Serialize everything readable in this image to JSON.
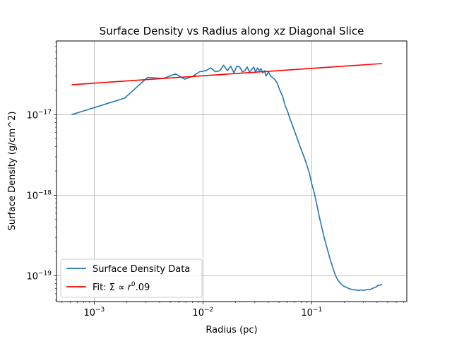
{
  "chart_data": {
    "type": "line",
    "title": "Surface Density vs Radius along xz Diagonal Slice",
    "xlabel": "Radius (pc)",
    "ylabel": "Surface Density (g/cm^2)",
    "xscale": "log",
    "yscale": "log",
    "xlim": [
      0.00045,
      0.75
    ],
    "ylim": [
      4.8e-20,
      8.2e-17
    ],
    "grid": true,
    "legend_position": "lower-left",
    "x_tick_labels": [
      {
        "value": 0.001,
        "base": "10",
        "exp": "−3"
      },
      {
        "value": 0.01,
        "base": "10",
        "exp": "−2"
      },
      {
        "value": 0.1,
        "base": "10",
        "exp": "−1"
      }
    ],
    "y_tick_labels": [
      {
        "value": 1e-19,
        "base": "10",
        "exp": "−19"
      },
      {
        "value": 1e-18,
        "base": "10",
        "exp": "−18"
      },
      {
        "value": 1e-17,
        "base": "10",
        "exp": "−17"
      }
    ],
    "series": [
      {
        "name": "Surface Density Data",
        "color": "#1f77b4",
        "x": [
          0.00062,
          0.0019,
          0.0031,
          0.0043,
          0.0056,
          0.0068,
          0.0081,
          0.0093,
          0.0106,
          0.0118,
          0.013,
          0.0143,
          0.0155,
          0.0168,
          0.018,
          0.0193,
          0.0205,
          0.0218,
          0.023,
          0.0243,
          0.0255,
          0.0268,
          0.028,
          0.0293,
          0.0305,
          0.0318,
          0.033,
          0.0343,
          0.0355,
          0.0368,
          0.038,
          0.04,
          0.042,
          0.045,
          0.048,
          0.051,
          0.054,
          0.057,
          0.06,
          0.064,
          0.068,
          0.072,
          0.076,
          0.08,
          0.085,
          0.09,
          0.095,
          0.1,
          0.106,
          0.112,
          0.118,
          0.125,
          0.132,
          0.14,
          0.148,
          0.157,
          0.166,
          0.176,
          0.187,
          0.198,
          0.21,
          0.223,
          0.237,
          0.252,
          0.268,
          0.285,
          0.303,
          0.322,
          0.342,
          0.363,
          0.385,
          0.408,
          0.432,
          0.445
        ],
        "y": [
          1e-17,
          1.6e-17,
          2.9e-17,
          2.8e-17,
          3.2e-17,
          2.75e-17,
          3e-17,
          3.4e-17,
          3.5e-17,
          3.8e-17,
          3.4e-17,
          3.5e-17,
          4.1e-17,
          3.5e-17,
          4e-17,
          3.3e-17,
          4e-17,
          3.9e-17,
          3.4e-17,
          3.5e-17,
          3.9e-17,
          3.4e-17,
          3.6e-17,
          3.9e-17,
          3.4e-17,
          3.8e-17,
          3.5e-17,
          3.7e-17,
          3.3e-17,
          3.5e-17,
          3e-17,
          3.4e-17,
          3e-17,
          2.8e-17,
          2.5e-17,
          2e-17,
          1.7e-17,
          1.3e-17,
          1.1e-17,
          8.5e-18,
          6.8e-18,
          5.5e-18,
          4.5e-18,
          3.7e-18,
          3e-18,
          2.4e-18,
          1.9e-18,
          1.4e-18,
          1.05e-18,
          7.5e-19,
          5.3e-19,
          3.8e-19,
          2.8e-19,
          2.1e-19,
          1.6e-19,
          1.25e-19,
          1e-19,
          8.7e-20,
          7.9e-20,
          7.4e-20,
          7.2e-20,
          6.9e-20,
          6.8e-20,
          6.7e-20,
          6.6e-20,
          6.7e-20,
          6.6e-20,
          6.8e-20,
          6.7e-20,
          7e-20,
          7.2e-20,
          7.6e-20,
          7.7e-20,
          7.9e-20
        ]
      },
      {
        "name": "Fit: Σ ∝ r^0.09",
        "color": "#ff0000",
        "x": [
          0.00062,
          0.445
        ],
        "y": [
          2.35e-17,
          4.3e-17
        ]
      }
    ],
    "legend": {
      "entry1": "Surface Density Data",
      "entry2_prefix": "Fit: Σ ∝ ",
      "entry2_var": "r",
      "entry2_exp": "0",
      "entry2_suffix": ".09"
    }
  }
}
